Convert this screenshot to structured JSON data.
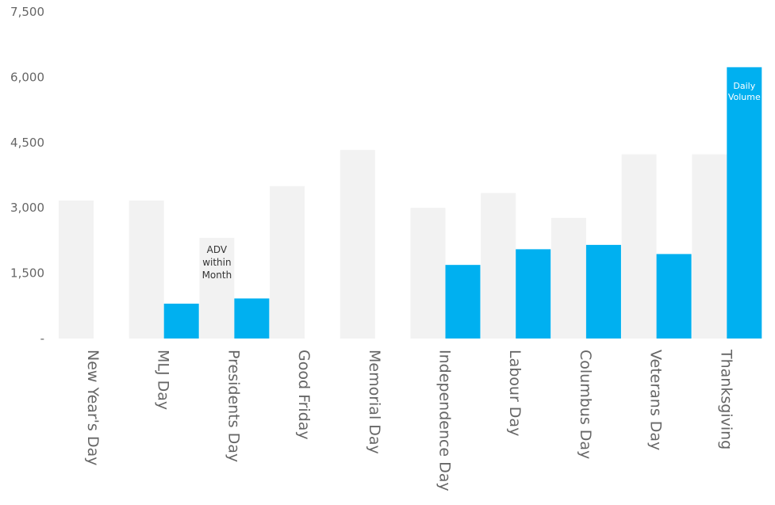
{
  "chart_data": {
    "type": "bar",
    "categories": [
      "New Year's Day",
      "MLJ Day",
      "Presidents Day",
      "Good Friday",
      "Memorial Day",
      "Independence Day",
      "Labour Day",
      "Columbus Day",
      "Veterans Day",
      "Thanksgiving"
    ],
    "series": [
      {
        "name": "ADV within Month",
        "color": "#f2f2f2",
        "values": [
          3170,
          3170,
          2310,
          3500,
          4330,
          3000,
          3340,
          2770,
          4230,
          4230
        ]
      },
      {
        "name": "Daily Volume",
        "color": "#00b0f0",
        "values": [
          null,
          800,
          920,
          null,
          null,
          1690,
          2050,
          2150,
          1940,
          6230
        ]
      }
    ],
    "yticks": [
      "-",
      "1,500",
      "3,000",
      "4,500",
      "6,000",
      "7,500"
    ],
    "ylim": [
      0,
      7500
    ],
    "legend": "inline labels on bars",
    "grid": false
  }
}
